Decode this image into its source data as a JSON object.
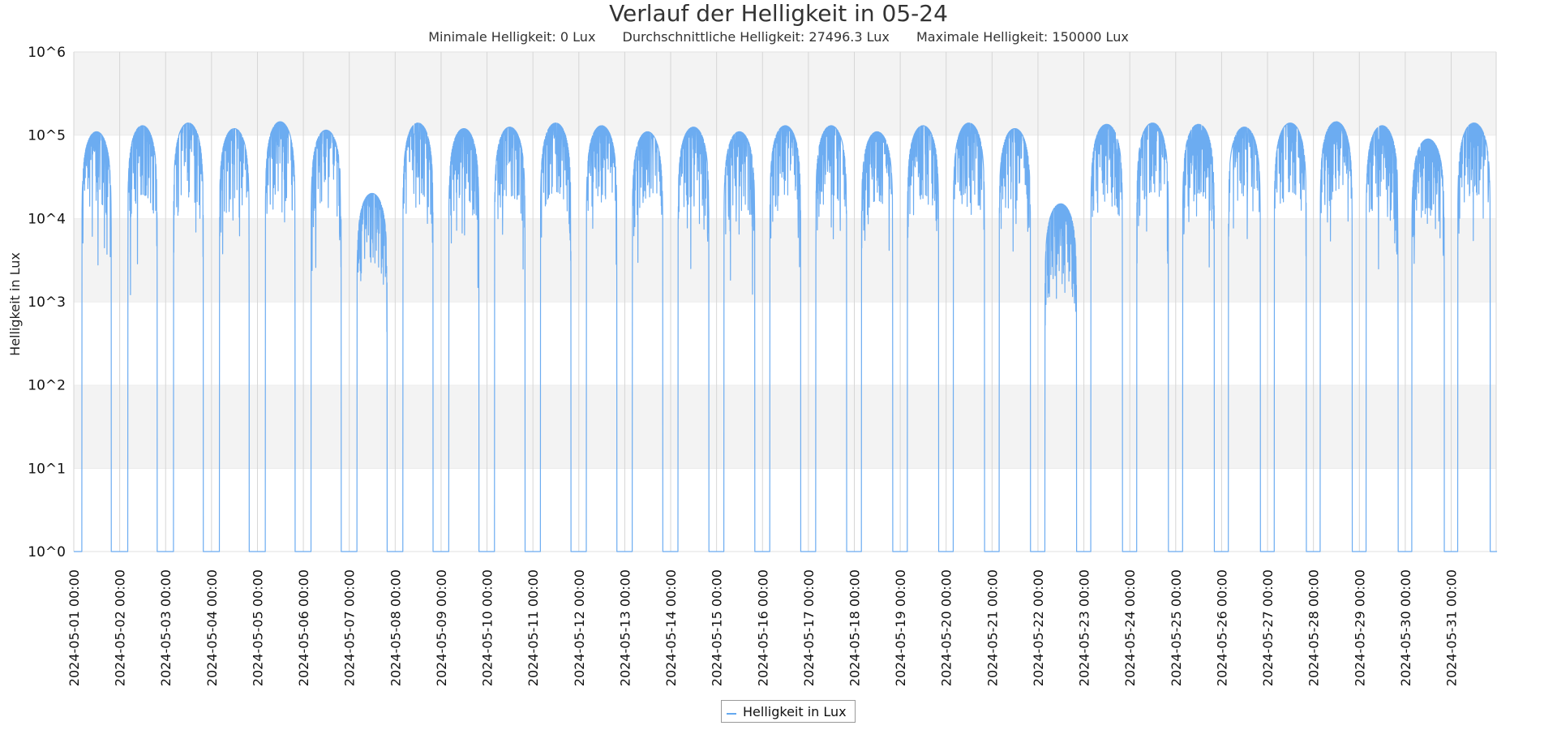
{
  "chart_data": {
    "type": "line",
    "title": "Verlauf der Helligkeit in 05-24",
    "subtitle": {
      "min": "Minimale Helligkeit: 0 Lux",
      "avg": "Durchschnittliche Helligkeit: 27496.3 Lux",
      "max": "Maximale Helligkeit: 150000 Lux"
    },
    "ylabel": "Helligkeit in Lux",
    "xlabel": "",
    "y_scale": "log",
    "ylim": [
      1,
      1000000
    ],
    "y_ticks": [
      "10^0",
      "10^1",
      "10^2",
      "10^3",
      "10^4",
      "10^5",
      "10^6"
    ],
    "x_ticks": [
      "2024-05-01 00:00",
      "2024-05-02 00:00",
      "2024-05-03 00:00",
      "2024-05-04 00:00",
      "2024-05-05 00:00",
      "2024-05-06 00:00",
      "2024-05-07 00:00",
      "2024-05-08 00:00",
      "2024-05-09 00:00",
      "2024-05-10 00:00",
      "2024-05-11 00:00",
      "2024-05-12 00:00",
      "2024-05-13 00:00",
      "2024-05-14 00:00",
      "2024-05-15 00:00",
      "2024-05-16 00:00",
      "2024-05-17 00:00",
      "2024-05-18 00:00",
      "2024-05-19 00:00",
      "2024-05-20 00:00",
      "2024-05-21 00:00",
      "2024-05-22 00:00",
      "2024-05-23 00:00",
      "2024-05-24 00:00",
      "2024-05-25 00:00",
      "2024-05-26 00:00",
      "2024-05-27 00:00",
      "2024-05-28 00:00",
      "2024-05-29 00:00",
      "2024-05-30 00:00",
      "2024-05-31 00:00"
    ],
    "x_range_days": [
      0,
      31
    ],
    "grid": true,
    "legend_position": "bottom-center",
    "series": [
      {
        "name": "Helligkeit in Lux",
        "color": "#64a8f0",
        "daily_peak_lux": [
          110000,
          130000,
          140000,
          120000,
          145000,
          115000,
          20000,
          140000,
          120000,
          125000,
          140000,
          130000,
          110000,
          125000,
          110000,
          130000,
          130000,
          110000,
          130000,
          140000,
          120000,
          15000,
          135000,
          140000,
          135000,
          125000,
          140000,
          145000,
          130000,
          90000,
          140000
        ],
        "daily_daylight_hours": [
          [
            4.2,
            19.6
          ],
          [
            4.2,
            19.6
          ],
          [
            4.1,
            19.7
          ],
          [
            4.1,
            19.7
          ],
          [
            4.1,
            19.7
          ],
          [
            4.0,
            19.8
          ],
          [
            4.0,
            19.8
          ],
          [
            4.0,
            19.8
          ],
          [
            4.0,
            19.8
          ],
          [
            3.9,
            19.9
          ],
          [
            3.9,
            19.9
          ],
          [
            3.9,
            19.9
          ],
          [
            3.9,
            19.9
          ],
          [
            3.8,
            20.0
          ],
          [
            3.8,
            20.0
          ],
          [
            3.8,
            20.0
          ],
          [
            3.8,
            20.0
          ],
          [
            3.7,
            20.1
          ],
          [
            3.7,
            20.1
          ],
          [
            3.7,
            20.1
          ],
          [
            3.7,
            20.1
          ],
          [
            3.6,
            20.2
          ],
          [
            3.6,
            20.2
          ],
          [
            3.6,
            20.2
          ],
          [
            3.6,
            20.2
          ],
          [
            3.5,
            20.3
          ],
          [
            3.5,
            20.3
          ],
          [
            3.5,
            20.3
          ],
          [
            3.5,
            20.3
          ],
          [
            3.4,
            20.4
          ],
          [
            3.4,
            20.4
          ]
        ],
        "night_value_lux": 1
      }
    ]
  }
}
